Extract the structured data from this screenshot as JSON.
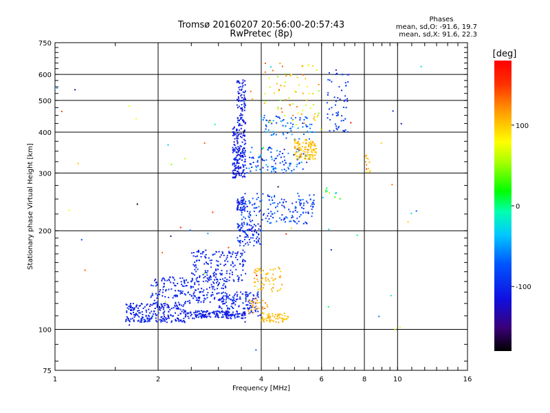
{
  "chart_data": {
    "type": "scatter",
    "title": "Tromsø 20160207 20:56:00-20:57:43",
    "subtitle": "RwPretec (8p)",
    "xlabel": "Frequency [MHz]",
    "ylabel": "Stationary phase Virtual Height [km]",
    "x_scale": "log",
    "y_scale": "log",
    "xlim": [
      1,
      16
    ],
    "ylim": [
      75,
      750
    ],
    "x_ticks": [
      "1",
      "2",
      "4",
      "6",
      "8",
      "10",
      "16"
    ],
    "x_tick_values": [
      1,
      2,
      4,
      6,
      8,
      10,
      16
    ],
    "y_ticks": [
      "75",
      "100",
      "200",
      "300",
      "400",
      "500",
      "600",
      "750"
    ],
    "y_tick_values": [
      75,
      100,
      200,
      300,
      400,
      500,
      600,
      750
    ],
    "grid": true,
    "legend": {
      "heading": "Phases",
      "line_o": "mean, sd,O: -91.6, 19.7",
      "line_x": "mean, sd,X:  91.6, 22.3",
      "placement": "top-right"
    },
    "colorbar": {
      "label": "[deg]",
      "min": -180,
      "max": 180,
      "ticks": [
        "100",
        "0",
        "-100"
      ],
      "tick_values": [
        100,
        0,
        -100
      ]
    },
    "clusters": [
      {
        "f": [
          1.6,
          2.4
        ],
        "h": [
          105,
          120
        ],
        "phase": [
          -115,
          -95
        ],
        "n": 220
      },
      {
        "f": [
          1.9,
          3.2
        ],
        "h": [
          120,
          145
        ],
        "phase": [
          -115,
          -90
        ],
        "n": 220
      },
      {
        "f": [
          2.5,
          3.6
        ],
        "h": [
          140,
          175
        ],
        "phase": [
          -115,
          -90
        ],
        "n": 160
      },
      {
        "f": [
          2.4,
          3.6
        ],
        "h": [
          108,
          114
        ],
        "phase": [
          -120,
          -95
        ],
        "n": 160
      },
      {
        "f": [
          3.0,
          4.0
        ],
        "h": [
          110,
          130
        ],
        "phase": [
          -115,
          -85
        ],
        "n": 120
      },
      {
        "f": [
          3.4,
          4.0
        ],
        "h": [
          180,
          210
        ],
        "phase": [
          -115,
          -80
        ],
        "n": 90
      },
      {
        "f": [
          3.5,
          5.7
        ],
        "h": [
          210,
          260
        ],
        "phase": [
          -110,
          -60
        ],
        "n": 170
      },
      {
        "f": [
          3.4,
          3.6
        ],
        "h": [
          230,
          250
        ],
        "phase": [
          -115,
          -95
        ],
        "n": 40
      },
      {
        "f": [
          3.3,
          3.6
        ],
        "h": [
          290,
          420
        ],
        "phase": [
          -125,
          -90
        ],
        "n": 180
      },
      {
        "f": [
          3.4,
          3.6
        ],
        "h": [
          420,
          580
        ],
        "phase": [
          -125,
          -95
        ],
        "n": 80
      },
      {
        "f": [
          3.6,
          5.5
        ],
        "h": [
          300,
          360
        ],
        "phase": [
          -110,
          -40
        ],
        "n": 110
      },
      {
        "f": [
          4.0,
          5.8
        ],
        "h": [
          380,
          450
        ],
        "phase": [
          -100,
          -40
        ],
        "n": 70
      },
      {
        "f": [
          5.0,
          5.8
        ],
        "h": [
          330,
          380
        ],
        "phase": [
          90,
          120
        ],
        "n": 110
      },
      {
        "f": [
          4.0,
          5.9
        ],
        "h": [
          420,
          650
        ],
        "phase": [
          40,
          140
        ],
        "n": 70
      },
      {
        "f": [
          4.0,
          4.8
        ],
        "h": [
          105,
          112
        ],
        "phase": [
          95,
          115
        ],
        "n": 60
      },
      {
        "f": [
          3.8,
          4.6
        ],
        "h": [
          130,
          155
        ],
        "phase": [
          90,
          120
        ],
        "n": 60
      },
      {
        "f": [
          3.6,
          4.2
        ],
        "h": [
          110,
          125
        ],
        "phase": [
          100,
          130
        ],
        "n": 30
      },
      {
        "f": [
          6.2,
          7.2
        ],
        "h": [
          400,
          620
        ],
        "phase": [
          -110,
          -80
        ],
        "n": 60
      },
      {
        "f": [
          6.0,
          6.8
        ],
        "h": [
          250,
          270
        ],
        "phase": [
          -40,
          60
        ],
        "n": 10
      },
      {
        "f": [
          8.0,
          8.6
        ],
        "h": [
          300,
          340
        ],
        "phase": [
          80,
          150
        ],
        "n": 12
      },
      {
        "f": [
          1.0,
          12.5
        ],
        "h": [
          80,
          650
        ],
        "phase": [
          -180,
          180
        ],
        "n": 60
      }
    ]
  }
}
